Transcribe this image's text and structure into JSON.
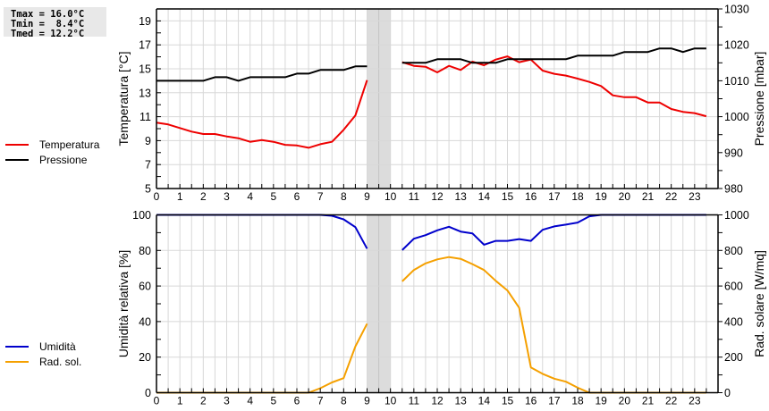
{
  "stats": {
    "lines": [
      "Tmax = 16.0°C",
      "Tmin =  8.4°C",
      "Tmed = 12.2°C"
    ]
  },
  "legend_top": [
    {
      "label": "Temperatura",
      "color": "#ee0000"
    },
    {
      "label": "Pressione",
      "color": "#000000"
    }
  ],
  "legend_bottom": [
    {
      "label": "Umidità",
      "color": "#0000cc"
    },
    {
      "label": "Rad. sol.",
      "color": "#f5a000"
    }
  ],
  "chart_data": [
    {
      "type": "line",
      "title": "",
      "xlabel": "",
      "ylabel": "Temperatura [°C]",
      "y2label": "Pressione [mbar]",
      "xlim": [
        0,
        24
      ],
      "ylim": [
        5,
        20
      ],
      "y2lim": [
        980,
        1030
      ],
      "xticks": [
        0,
        1,
        2,
        3,
        4,
        5,
        6,
        7,
        8,
        9,
        10,
        11,
        12,
        13,
        14,
        15,
        16,
        17,
        18,
        19,
        20,
        21,
        22,
        23
      ],
      "yticks": [
        5,
        7,
        9,
        11,
        13,
        15,
        17,
        19
      ],
      "y2ticks": [
        980,
        990,
        1000,
        1010,
        1020,
        1030
      ],
      "grid": true,
      "missing_band": [
        9,
        10
      ],
      "legend_position": "left",
      "series": [
        {
          "name": "Temperatura",
          "axis": "left",
          "color": "#ee0000",
          "segments": [
            {
              "x": [
                0,
                0.5,
                1,
                1.5,
                2,
                2.5,
                3,
                3.5,
                4,
                4.5,
                5,
                5.5,
                6,
                6.5,
                7,
                7.5,
                8,
                8.5,
                9
              ],
              "y": [
                10.5,
                10.35,
                10.05,
                9.75,
                9.55,
                9.55,
                9.35,
                9.2,
                8.9,
                9.05,
                8.9,
                8.65,
                8.6,
                8.4,
                8.7,
                8.9,
                9.9,
                11.1,
                14.05
              ]
            },
            {
              "x": [
                10.5,
                11,
                11.5,
                12,
                12.5,
                13,
                13.5,
                14,
                14.5,
                15,
                15.5,
                16,
                16.5,
                17,
                17.5,
                18,
                18.5,
                19,
                19.5,
                20,
                20.5,
                21,
                21.5,
                22,
                22.5,
                23,
                23.5
              ],
              "y": [
                15.55,
                15.25,
                15.17,
                14.7,
                15.25,
                14.9,
                15.6,
                15.3,
                15.77,
                16.04,
                15.55,
                15.77,
                14.85,
                14.58,
                14.43,
                14.18,
                13.9,
                13.56,
                12.78,
                12.63,
                12.63,
                12.19,
                12.19,
                11.64,
                11.4,
                11.3,
                11.04
              ]
            }
          ]
        },
        {
          "name": "Pressione",
          "axis": "right",
          "color": "#000000",
          "segments": [
            {
              "x": [
                0,
                0.5,
                1,
                1.5,
                2,
                2.5,
                3,
                3.5,
                4,
                4.5,
                5,
                5.5,
                6,
                6.5,
                7,
                7.5,
                8,
                8.5,
                9
              ],
              "y": [
                1010,
                1010,
                1010,
                1010,
                1010,
                1011,
                1011,
                1010,
                1011,
                1011,
                1011,
                1011,
                1012,
                1012,
                1013,
                1013,
                1013,
                1014,
                1014
              ]
            },
            {
              "x": [
                10.5,
                11,
                11.5,
                12,
                12.5,
                13,
                13.5,
                14,
                14.5,
                15,
                15.5,
                16,
                16.5,
                17,
                17.5,
                18,
                18.5,
                19,
                19.5,
                20,
                20.5,
                21,
                21.5,
                22,
                22.5,
                23,
                23.5
              ],
              "y": [
                1015,
                1015,
                1015,
                1016,
                1016,
                1016,
                1015,
                1015,
                1015,
                1016,
                1016,
                1016,
                1016,
                1016,
                1016,
                1017,
                1017,
                1017,
                1017,
                1018,
                1018,
                1018,
                1019,
                1019,
                1018,
                1019,
                1019
              ]
            }
          ]
        }
      ]
    },
    {
      "type": "line",
      "title": "",
      "xlabel": "",
      "ylabel": "Umidità relativa [%]",
      "y2label": "Rad. solare [W/mq]",
      "xlim": [
        0,
        24
      ],
      "ylim": [
        0,
        100
      ],
      "y2lim": [
        0,
        1000
      ],
      "xticks": [
        0,
        1,
        2,
        3,
        4,
        5,
        6,
        7,
        8,
        9,
        10,
        11,
        12,
        13,
        14,
        15,
        16,
        17,
        18,
        19,
        20,
        21,
        22,
        23
      ],
      "yticks": [
        0,
        20,
        40,
        60,
        80,
        100
      ],
      "y2ticks": [
        0,
        200,
        400,
        600,
        800,
        1000
      ],
      "grid": true,
      "missing_band": [
        9,
        10
      ],
      "legend_position": "left",
      "series": [
        {
          "name": "Umidità",
          "axis": "left",
          "color": "#0000cc",
          "segments": [
            {
              "x": [
                0,
                0.5,
                1,
                1.5,
                2,
                2.5,
                3,
                3.5,
                4,
                4.5,
                5,
                5.5,
                6,
                6.5,
                7,
                7.5,
                8,
                8.5,
                9
              ],
              "y": [
                100,
                100,
                100,
                100,
                100,
                100,
                100,
                100,
                100,
                100,
                100,
                100,
                100,
                100,
                100,
                99.5,
                97.5,
                93.1,
                81
              ]
            },
            {
              "x": [
                10.5,
                11,
                11.5,
                12,
                12.5,
                13,
                13.5,
                14,
                14.5,
                15,
                15.5,
                16,
                16.5,
                17,
                17.5,
                18,
                18.5,
                19,
                19.5,
                20,
                20.5,
                21,
                21.5,
                22,
                22.5,
                23,
                23.5
              ],
              "y": [
                80.2,
                86.6,
                88.6,
                91.3,
                93.3,
                90.6,
                89.6,
                83.2,
                85.4,
                85.4,
                86.4,
                85.4,
                91.6,
                93.5,
                94.5,
                95.7,
                99.2,
                100,
                100,
                100,
                100,
                100,
                100,
                100,
                100,
                100,
                100
              ]
            }
          ]
        },
        {
          "name": "Rad. sol.",
          "axis": "right",
          "color": "#f5a000",
          "segments": [
            {
              "x": [
                0,
                0.5,
                1,
                1.5,
                2,
                2.5,
                3,
                3.5,
                4,
                4.5,
                5,
                5.5,
                6,
                6.5,
                7,
                7.5,
                8,
                8.5,
                9
              ],
              "y": [
                0,
                0,
                0,
                0,
                0,
                0,
                0,
                0,
                0,
                0,
                0,
                0,
                0,
                0,
                25,
                58,
                82,
                260,
                388
              ]
            },
            {
              "x": [
                10.5,
                11,
                11.5,
                12,
                12.5,
                13,
                13.5,
                14,
                14.5,
                15,
                15.5,
                16,
                16.5,
                17,
                17.5,
                18,
                18.5,
                19,
                19.5,
                20,
                20.5,
                21,
                21.5,
                22,
                22.5,
                23,
                23.5
              ],
              "y": [
                626,
                690,
                727,
                750,
                763,
                753,
                723,
                690,
                629,
                575,
                478,
                142,
                106,
                79,
                62,
                28,
                0,
                0,
                0,
                0,
                0,
                0,
                0,
                0,
                0,
                0,
                0
              ]
            }
          ]
        }
      ]
    }
  ]
}
